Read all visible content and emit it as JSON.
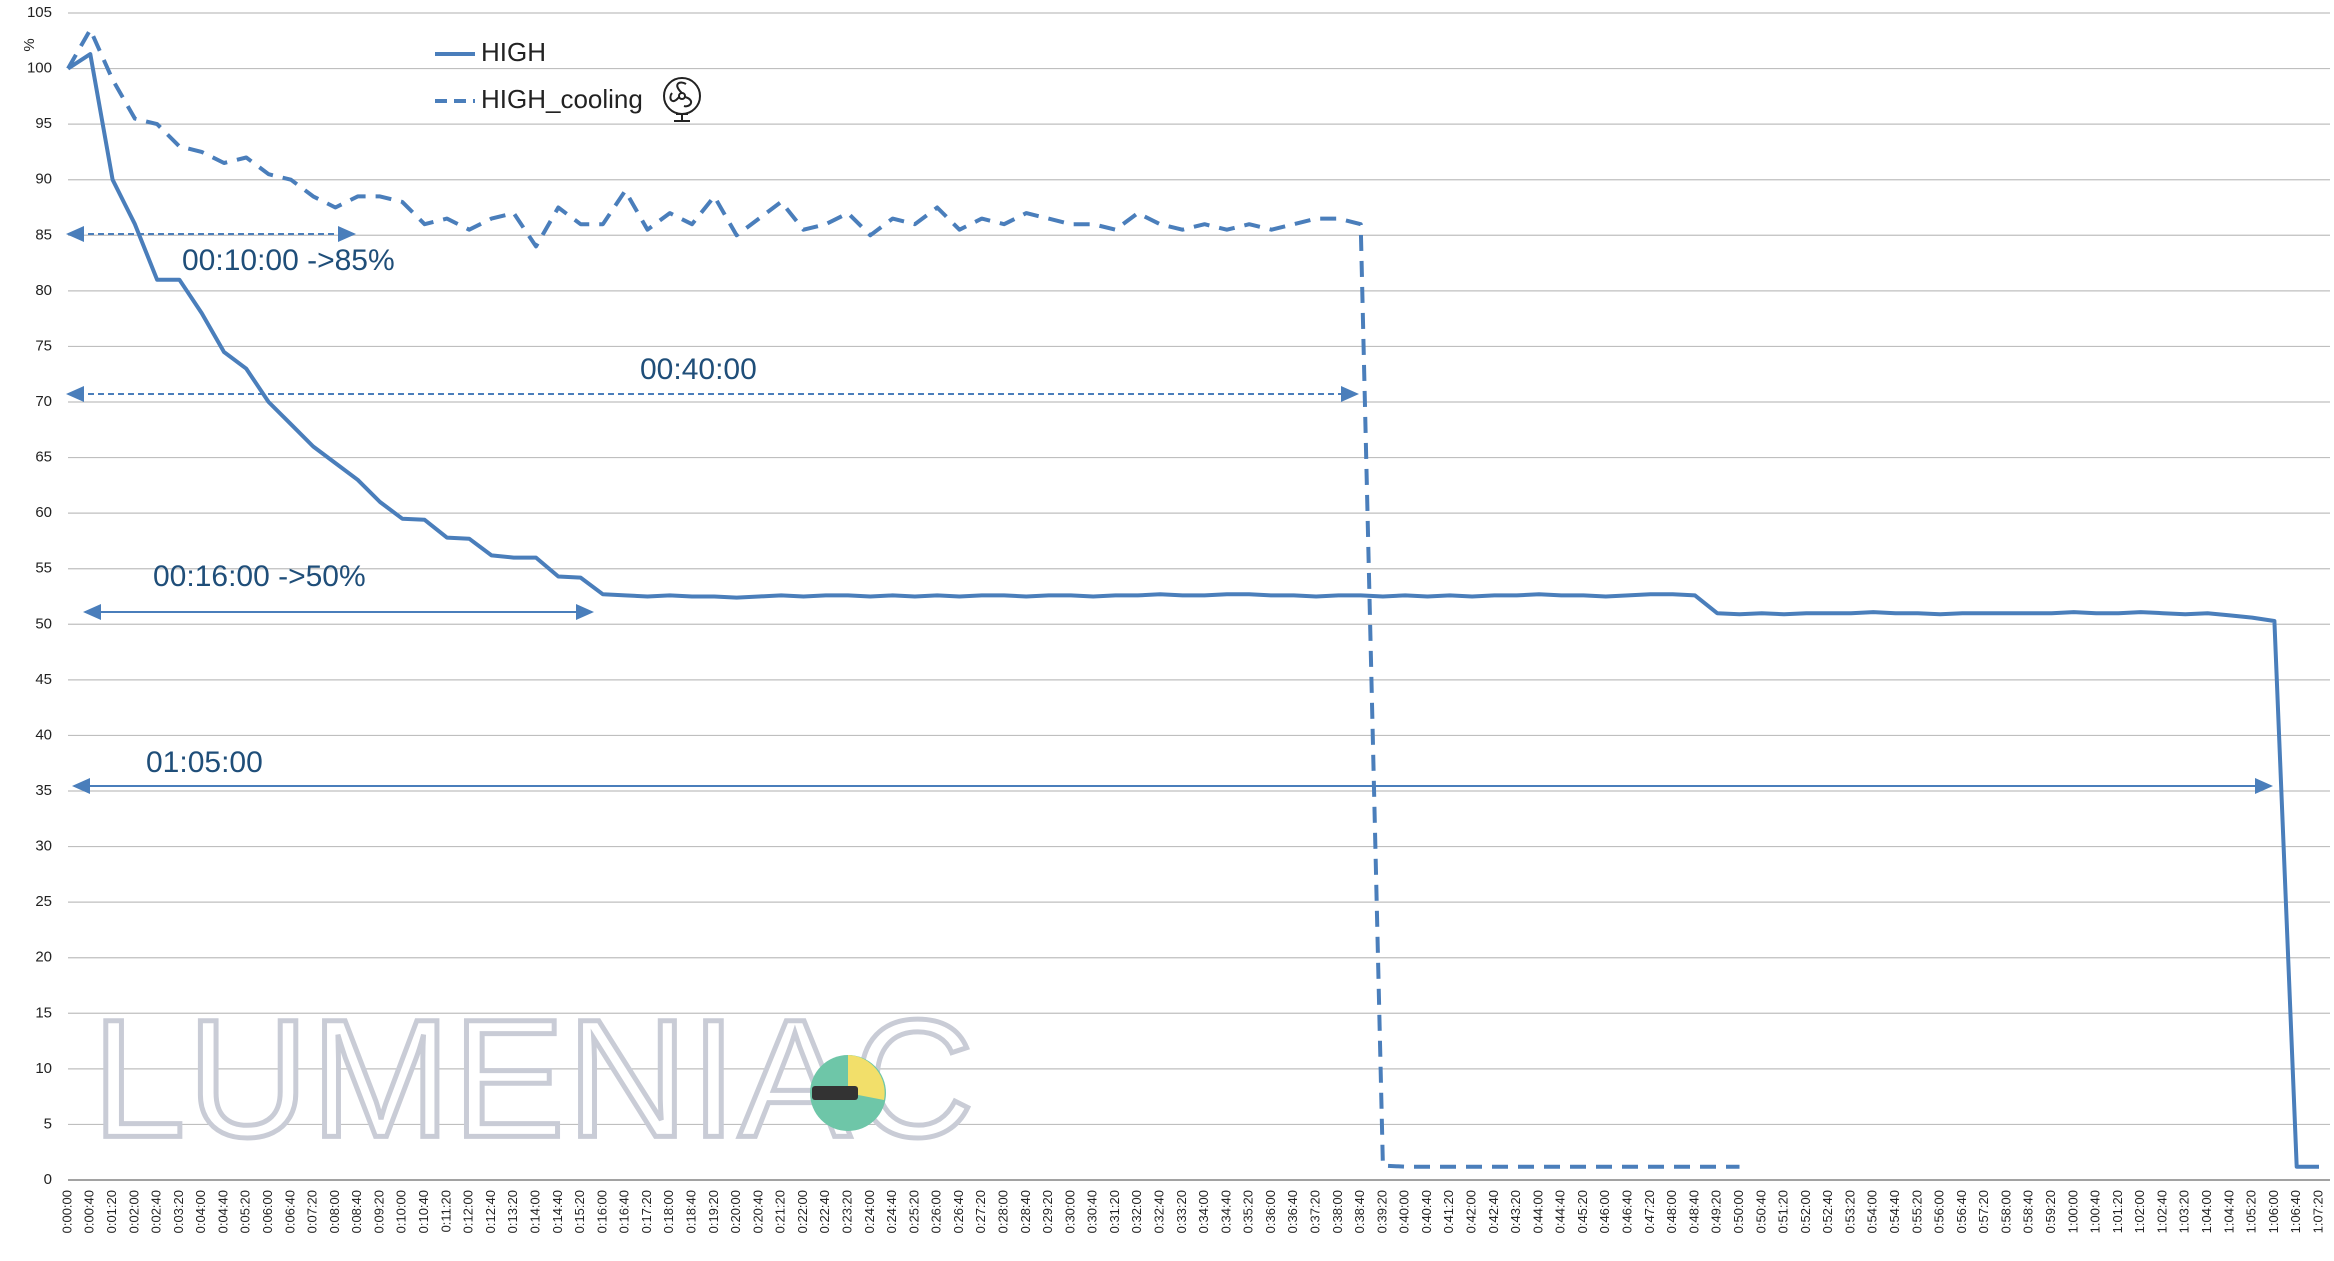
{
  "chart_data": {
    "type": "line",
    "y_label": "%",
    "watermark": "LUMENIAC",
    "annotations": [
      "00:10:00 ->85%",
      "00:40:00",
      "00:16:00 ->50%",
      "01:05:00"
    ],
    "categories": [
      "0:00:00",
      "0:00:40",
      "0:01:20",
      "0:02:00",
      "0:02:40",
      "0:03:20",
      "0:04:00",
      "0:04:40",
      "0:05:20",
      "0:06:00",
      "0:06:40",
      "0:07:20",
      "0:08:00",
      "0:08:40",
      "0:09:20",
      "0:10:00",
      "0:10:40",
      "0:11:20",
      "0:12:00",
      "0:12:40",
      "0:13:20",
      "0:14:00",
      "0:14:40",
      "0:15:20",
      "0:16:00",
      "0:16:40",
      "0:17:20",
      "0:18:00",
      "0:18:40",
      "0:19:20",
      "0:20:00",
      "0:20:40",
      "0:21:20",
      "0:22:00",
      "0:22:40",
      "0:23:20",
      "0:24:00",
      "0:24:40",
      "0:25:20",
      "0:26:00",
      "0:26:40",
      "0:27:20",
      "0:28:00",
      "0:28:40",
      "0:29:20",
      "0:30:00",
      "0:30:40",
      "0:31:20",
      "0:32:00",
      "0:32:40",
      "0:33:20",
      "0:34:00",
      "0:34:40",
      "0:35:20",
      "0:36:00",
      "0:36:40",
      "0:37:20",
      "0:38:00",
      "0:38:40",
      "0:39:20",
      "0:40:00",
      "0:40:40",
      "0:41:20",
      "0:42:00",
      "0:42:40",
      "0:43:20",
      "0:44:00",
      "0:44:40",
      "0:45:20",
      "0:46:00",
      "0:46:40",
      "0:47:20",
      "0:48:00",
      "0:48:40",
      "0:49:20",
      "0:50:00",
      "0:50:40",
      "0:51:20",
      "0:52:00",
      "0:52:40",
      "0:53:20",
      "0:54:00",
      "0:54:40",
      "0:55:20",
      "0:56:00",
      "0:56:40",
      "0:57:20",
      "0:58:00",
      "0:58:40",
      "0:59:20",
      "1:00:00",
      "1:00:40",
      "1:01:20",
      "1:02:00",
      "1:02:40",
      "1:03:20",
      "1:04:00",
      "1:04:40",
      "1:05:20",
      "1:06:00",
      "1:06:40",
      "1:07:20"
    ],
    "series": [
      {
        "name": "HIGH",
        "color": "#4a7ebb",
        "dash": false,
        "values": [
          100,
          101.3,
          90,
          86,
          81,
          81,
          78,
          74.5,
          73,
          70,
          68,
          66,
          64.5,
          63,
          61,
          59.5,
          59.4,
          57.8,
          57.7,
          56.2,
          56,
          56,
          54.3,
          54.2,
          52.7,
          52.6,
          52.5,
          52.6,
          52.5,
          52.5,
          52.4,
          52.5,
          52.6,
          52.5,
          52.6,
          52.6,
          52.5,
          52.6,
          52.5,
          52.6,
          52.5,
          52.6,
          52.6,
          52.5,
          52.6,
          52.6,
          52.5,
          52.6,
          52.6,
          52.7,
          52.6,
          52.6,
          52.7,
          52.7,
          52.6,
          52.6,
          52.5,
          52.6,
          52.6,
          52.5,
          52.6,
          52.5,
          52.6,
          52.5,
          52.6,
          52.6,
          52.7,
          52.6,
          52.6,
          52.5,
          52.6,
          52.7,
          52.7,
          52.6,
          51,
          50.9,
          51,
          50.9,
          51,
          51,
          51,
          51.1,
          51,
          51,
          50.9,
          51,
          51,
          51,
          51,
          51,
          51.1,
          51,
          51,
          51.1,
          51,
          50.9,
          51,
          50.8,
          50.6,
          50.3,
          1.2,
          1.2
        ]
      },
      {
        "name": "HIGH_cooling",
        "color": "#4a7ebb",
        "dash": true,
        "values": [
          100,
          103.5,
          99,
          95.5,
          95,
          93,
          92.5,
          91.5,
          92,
          90.5,
          90,
          88.5,
          87.5,
          88.5,
          88.5,
          88,
          86,
          86.5,
          85.5,
          86.5,
          87,
          84,
          87.5,
          86,
          86,
          89,
          85.5,
          87,
          86,
          88.5,
          85,
          86.5,
          88,
          85.5,
          86,
          87,
          85,
          86.5,
          86,
          87.5,
          85.5,
          86.5,
          86,
          87,
          86.5,
          86,
          86,
          85.5,
          87,
          86,
          85.5,
          86,
          85.5,
          86,
          85.5,
          86,
          86.5,
          86.5,
          86,
          1.3,
          1.2,
          1.2,
          1.2,
          1.2,
          1.2,
          1.2,
          1.2,
          1.2,
          1.2,
          1.2,
          1.2,
          1.2,
          1.2,
          1.2,
          1.2,
          1.2,
          null,
          null,
          null,
          null,
          null,
          null,
          null,
          null,
          null,
          null,
          null,
          null,
          null,
          null,
          null,
          null,
          null,
          null,
          null,
          null,
          null,
          null,
          null,
          null,
          null,
          null
        ]
      }
    ],
    "ylim": [
      0,
      105
    ],
    "yticks": [
      0,
      5,
      10,
      15,
      20,
      25,
      30,
      35,
      40,
      45,
      50,
      55,
      60,
      65,
      70,
      75,
      80,
      85,
      90,
      95,
      100,
      105
    ],
    "grid": true,
    "legend": "top-left"
  }
}
